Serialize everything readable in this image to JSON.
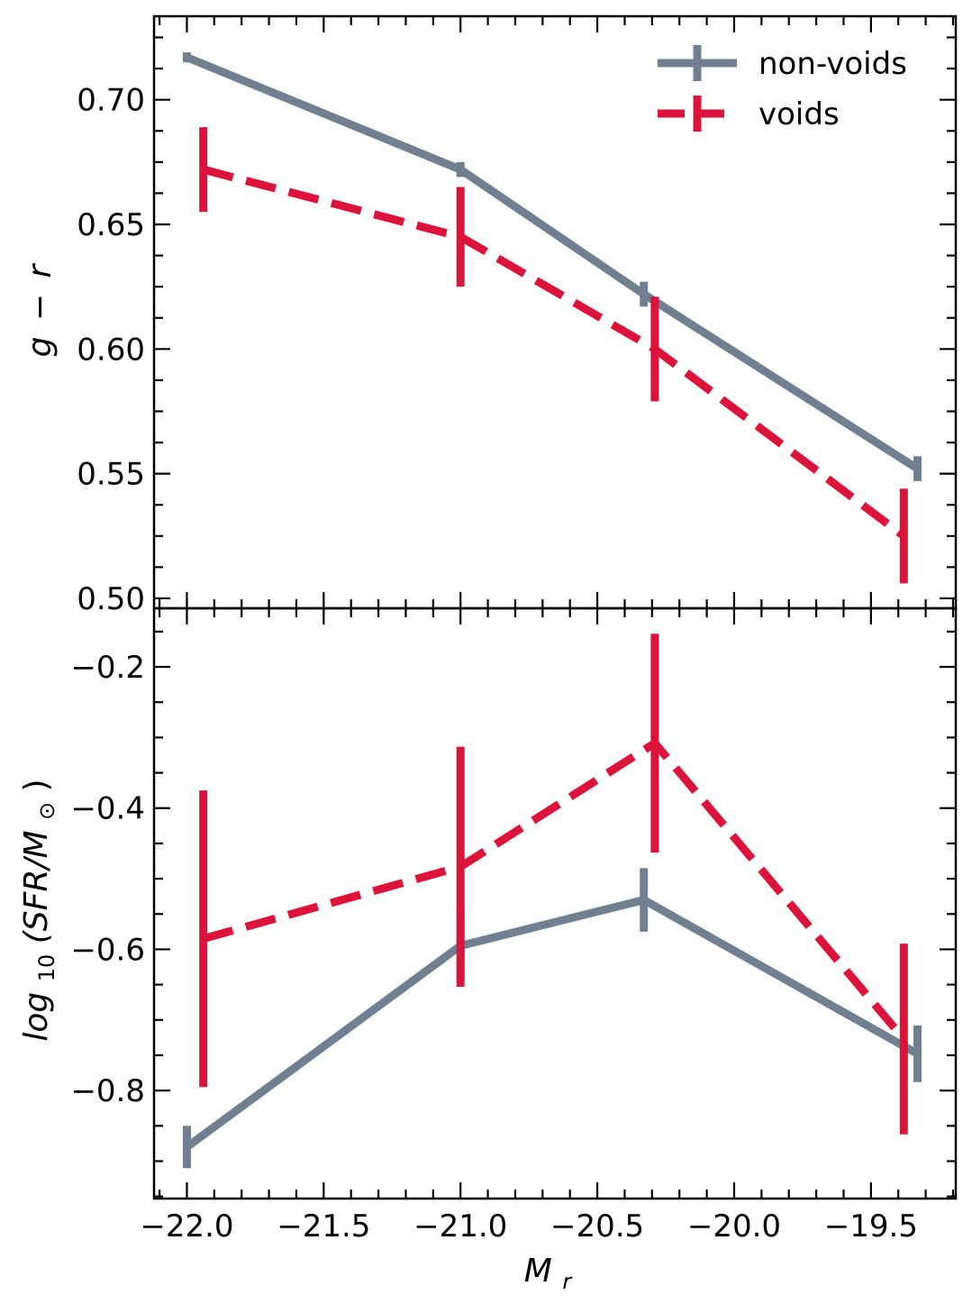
{
  "chart_data": [
    {
      "type": "line",
      "panel": "top",
      "title": "",
      "ylabel": "g − r",
      "xlim": [
        -22.12,
        -19.19
      ],
      "ylim": [
        0.496,
        0.7335
      ],
      "x_ticks": [
        -22.0,
        -21.5,
        -21.0,
        -20.5,
        -20.0,
        -19.5
      ],
      "y_ticks": [
        0.5,
        0.55,
        0.6,
        0.65,
        0.7
      ],
      "y_tick_labels": [
        "0.50",
        "0.55",
        "0.60",
        "0.65",
        "0.70"
      ],
      "legend": {
        "position": "top-right",
        "entries": [
          "non-voids",
          "voids"
        ]
      },
      "series": [
        {
          "name": "non-voids",
          "color": "#708090",
          "style": "solid",
          "x": [
            -22.0,
            -21.0,
            -20.33,
            -19.33
          ],
          "y": [
            0.717,
            0.672,
            0.622,
            0.552
          ],
          "yerr": [
            0.002,
            0.003,
            0.005,
            0.005
          ]
        },
        {
          "name": "voids",
          "color": "#dc143c",
          "style": "dashed",
          "x": [
            -21.94,
            -21.0,
            -20.29,
            -19.38
          ],
          "y": [
            0.672,
            0.645,
            0.6,
            0.525
          ],
          "yerr": [
            0.017,
            0.02,
            0.021,
            0.019
          ]
        }
      ]
    },
    {
      "type": "line",
      "panel": "bottom",
      "title": "",
      "xlabel": "M_r",
      "ylabel": "log10(SFR/M⊙)",
      "xlim": [
        -22.12,
        -19.19
      ],
      "ylim": [
        -0.953,
        -0.117
      ],
      "x_ticks": [
        -22.0,
        -21.5,
        -21.0,
        -20.5,
        -20.0,
        -19.5
      ],
      "x_tick_labels": [
        "−22.0",
        "−21.5",
        "−21.0",
        "−20.5",
        "−20.0",
        "−19.5"
      ],
      "y_ticks": [
        -0.8,
        -0.6,
        -0.4,
        -0.2
      ],
      "y_tick_labels": [
        "−0.8",
        "−0.6",
        "−0.4",
        "−0.2"
      ],
      "series": [
        {
          "name": "non-voids",
          "color": "#708090",
          "style": "solid",
          "x": [
            -22.0,
            -21.0,
            -20.33,
            -19.33
          ],
          "y": [
            -0.88,
            -0.595,
            -0.53,
            -0.748
          ],
          "yerr": [
            0.03,
            0.05,
            0.045,
            0.04
          ]
        },
        {
          "name": "voids",
          "color": "#dc143c",
          "style": "dashed",
          "x": [
            -21.94,
            -21.0,
            -20.29,
            -19.38
          ],
          "y": [
            -0.585,
            -0.483,
            -0.308,
            -0.727
          ],
          "yerr": [
            0.21,
            0.17,
            0.155,
            0.135
          ]
        }
      ]
    }
  ],
  "axis_labels": {
    "top_ylabel_main": "g",
    "top_ylabel_op": "−",
    "top_ylabel_rest": "r",
    "bottom_ylabel_main": "log",
    "bottom_ylabel_sub": "10",
    "bottom_ylabel_rest": "(SFR/M",
    "bottom_ylabel_sub2": "⊙",
    "bottom_ylabel_close": ")",
    "xlabel_main": "M",
    "xlabel_sub": "r"
  }
}
